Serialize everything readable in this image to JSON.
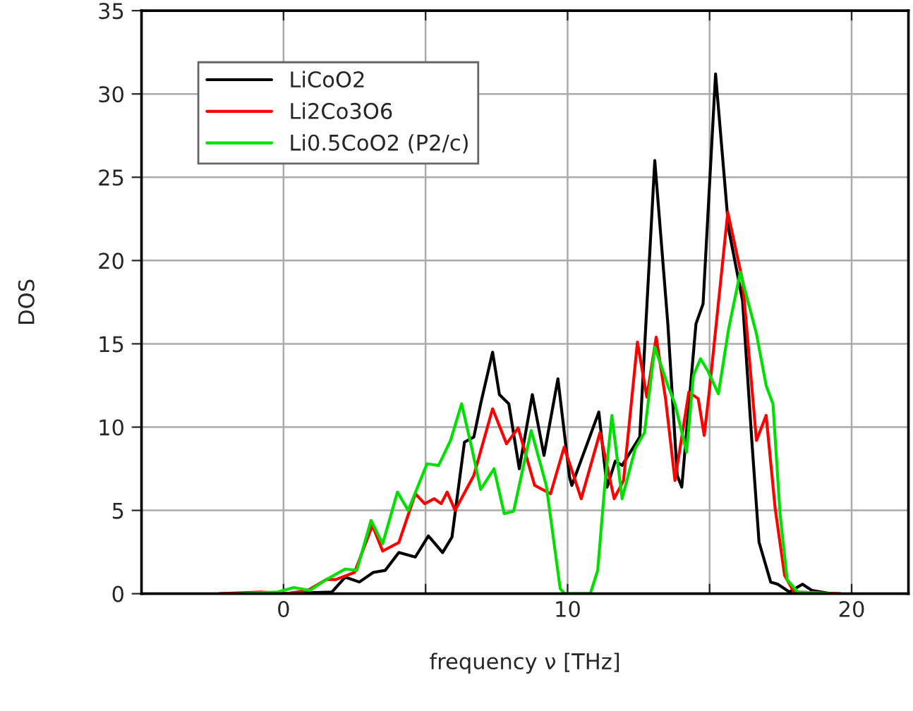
{
  "chart_data": {
    "type": "line",
    "xlabel": "frequency ν [THz]",
    "ylabel": "DOS",
    "xlim": [
      -5,
      22
    ],
    "xticks": [
      {
        "value": -5,
        "label": null
      },
      0,
      {
        "value": 5,
        "label": null
      },
      10,
      {
        "value": 15,
        "label": null
      },
      20
    ],
    "ylim": [
      0,
      35
    ],
    "yticks": [
      0,
      5,
      10,
      15,
      20,
      25,
      30,
      35
    ],
    "grid": true,
    "legend": "top left",
    "marker": "none",
    "line_style": "solid",
    "series": [
      {
        "name": "LiCoO2",
        "color": "#000000",
        "x": [
          0,
          1.7,
          2.17,
          2.67,
          3.16,
          3.58,
          4.06,
          4.64,
          5.1,
          5.6,
          5.93,
          6.37,
          6.7,
          6.94,
          7.36,
          7.6,
          7.93,
          8.3,
          8.76,
          9.17,
          9.66,
          10.07,
          10.15,
          11.1,
          11.39,
          11.68,
          11.92,
          12.54,
          13.07,
          13.53,
          13.86,
          14.02,
          14.52,
          14.77,
          15.21,
          15.67,
          16.16,
          16.49,
          16.74,
          17.15,
          17.4,
          17.81,
          18.27,
          18.6,
          19.3
        ],
        "values": [
          0,
          0.1,
          0.99,
          0.7,
          1.28,
          1.4,
          2.47,
          2.2,
          3.47,
          2.47,
          3.4,
          9.1,
          9.4,
          11.4,
          14.5,
          11.95,
          11.4,
          7.5,
          11.95,
          8.3,
          12.9,
          7.0,
          6.5,
          10.9,
          6.4,
          7.96,
          7.7,
          9.4,
          26.0,
          16.2,
          7.1,
          6.4,
          16.2,
          17.4,
          31.2,
          21.9,
          17.6,
          9.1,
          3.1,
          0.7,
          0.57,
          0.1,
          0.57,
          0.2,
          0
        ]
      },
      {
        "name": "Li2Co3O6",
        "color": "#ff0000",
        "x": [
          -2.27,
          -0.8,
          0.1,
          0.85,
          1.51,
          1.84,
          2.5,
          3.13,
          3.49,
          4.06,
          4.64,
          4.97,
          5.3,
          5.55,
          5.76,
          6.04,
          6.7,
          7.36,
          7.85,
          8.26,
          8.84,
          9.4,
          9.88,
          10.48,
          11.14,
          11.64,
          11.97,
          12.46,
          12.79,
          13.12,
          13.45,
          13.78,
          14.27,
          14.6,
          14.81,
          14.98,
          15.64,
          16.16,
          16.65,
          16.99,
          17.31,
          17.64,
          17.97,
          19.6
        ],
        "values": [
          0,
          0.1,
          0,
          0.2,
          0.85,
          0.85,
          1.28,
          4.1,
          2.56,
          3.07,
          6.0,
          5.4,
          5.7,
          5.4,
          6.1,
          5.0,
          7.1,
          11.1,
          9.0,
          9.95,
          6.5,
          6.0,
          8.8,
          5.7,
          9.67,
          5.7,
          6.8,
          15.1,
          11.8,
          15.4,
          11.7,
          6.8,
          12.1,
          11.7,
          9.5,
          12.0,
          22.9,
          18.8,
          9.2,
          10.7,
          5.1,
          1.1,
          0.1,
          0
        ]
      },
      {
        "name": "Li0.5CoO2 (P2/c)",
        "color": "#00e000",
        "x": [
          -1.6,
          -0.2,
          0.36,
          0.93,
          1.51,
          2.17,
          2.58,
          3.08,
          3.49,
          4.01,
          4.39,
          5.05,
          5.46,
          5.88,
          6.27,
          6.62,
          6.94,
          7.41,
          7.77,
          8.1,
          8.72,
          9.25,
          9.74,
          9.9,
          10.8,
          11.06,
          11.31,
          11.56,
          11.92,
          12.38,
          12.71,
          13.07,
          13.53,
          13.78,
          14.19,
          14.43,
          14.68,
          14.93,
          15.31,
          15.67,
          16.08,
          16.65,
          16.99,
          17.23,
          17.48,
          17.73,
          18.1,
          19.3
        ],
        "values": [
          0,
          0.1,
          0.37,
          0.2,
          0.85,
          1.48,
          1.4,
          4.4,
          3.0,
          6.1,
          5.0,
          7.8,
          7.7,
          9.2,
          11.4,
          8.8,
          6.26,
          7.5,
          4.8,
          4.95,
          9.8,
          6.5,
          0.3,
          0,
          0,
          1.4,
          6.5,
          10.7,
          5.7,
          8.7,
          9.67,
          14.8,
          12.5,
          11.4,
          8.5,
          13.1,
          14.1,
          13.4,
          12.0,
          15.9,
          19.3,
          15.6,
          12.5,
          11.4,
          4.8,
          0.85,
          0.1,
          0
        ]
      }
    ]
  }
}
